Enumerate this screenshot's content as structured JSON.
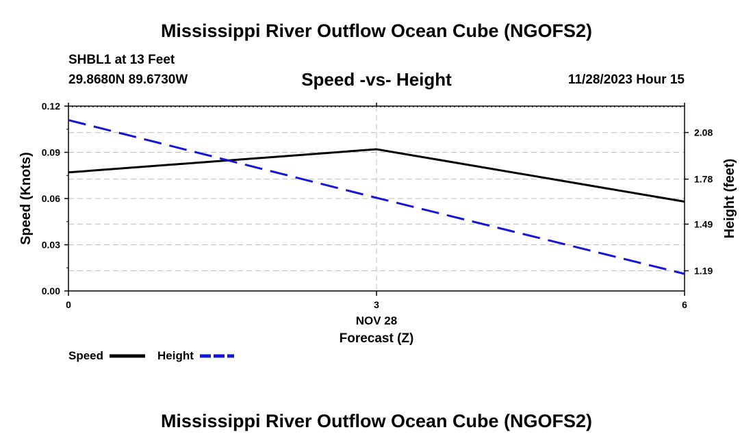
{
  "header": {
    "main_title": "Mississippi River Outflow Ocean Cube (NGOFS2)",
    "station": "SHBL1 at 13 Feet",
    "coords": "29.8680N  89.6730W",
    "datetime": "11/28/2023 Hour 15"
  },
  "footer": {
    "main_title": "Mississippi River Outflow Ocean Cube (NGOFS2)"
  },
  "legend": {
    "speed_label": "Speed",
    "height_label": "Height"
  },
  "colors": {
    "speed": "#000000",
    "height": "#1515d6",
    "grid": "#bdbdbd"
  },
  "chart_data": {
    "type": "line",
    "title": "Speed -vs- Height",
    "xlabel": "Forecast (Z)",
    "xdate_label": "NOV 28",
    "ylabel": "Speed (Knots)",
    "y2label": "Height (feet)",
    "x": [
      0,
      3,
      6
    ],
    "x_tick_labels": [
      "0",
      "3",
      "6"
    ],
    "xlim": [
      0,
      6
    ],
    "ylim": [
      0,
      0.12
    ],
    "y_ticks": [
      0.0,
      0.03,
      0.06,
      0.09,
      0.12
    ],
    "y_tick_labels": [
      "0.00",
      "0.03",
      "0.06",
      "0.09",
      "0.12"
    ],
    "y2lim": [
      1.06,
      2.25
    ],
    "y2_ticks": [
      1.19,
      1.49,
      1.78,
      2.08
    ],
    "y2_tick_labels": [
      "1.19",
      "1.49",
      "1.78",
      "2.08"
    ],
    "grid": true,
    "series": [
      {
        "name": "Speed",
        "axis": "left",
        "style": "solid",
        "values": [
          0.077,
          0.092,
          0.058
        ]
      },
      {
        "name": "Height",
        "axis": "right",
        "style": "dashed",
        "values": [
          2.16,
          1.66,
          1.17
        ]
      }
    ]
  }
}
